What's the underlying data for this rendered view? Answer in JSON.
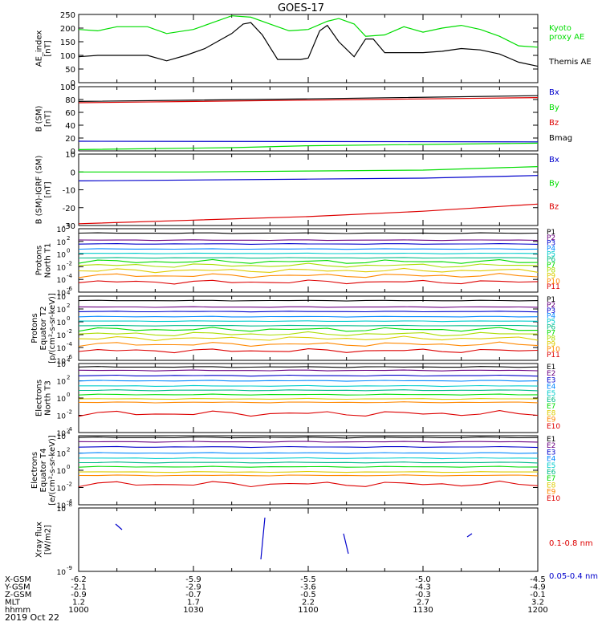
{
  "title": "GOES-17",
  "date_label": "2019 Oct 22",
  "chart_data": [
    {
      "panel": "ae",
      "type": "line",
      "ylabel": [
        "AE_index",
        "[nT]"
      ],
      "ylim": [
        0,
        250
      ],
      "yticks": [
        0,
        50,
        100,
        150,
        200,
        250
      ],
      "x_hhmm": [
        1000,
        1200
      ],
      "series": [
        {
          "name": "Kyoto proxy AE",
          "label_lines": [
            "Kyoto",
            "proxy AE"
          ],
          "color": "#00dd00",
          "x": [
            1000,
            1005,
            1010,
            1018,
            1023,
            1030,
            1035,
            1040,
            1045,
            1050,
            1055,
            1100,
            1105,
            1108,
            1112,
            1115,
            1120,
            1125,
            1130,
            1135,
            1140,
            1145,
            1150,
            1155,
            1200
          ],
          "values": [
            195,
            190,
            205,
            205,
            180,
            195,
            220,
            245,
            240,
            215,
            190,
            195,
            225,
            235,
            215,
            170,
            175,
            205,
            185,
            200,
            210,
            195,
            170,
            135,
            130
          ]
        },
        {
          "name": "Themis AE",
          "label_lines": [
            "Themis AE"
          ],
          "color": "#000000",
          "x": [
            1000,
            1005,
            1010,
            1018,
            1023,
            1028,
            1033,
            1040,
            1043,
            1045,
            1048,
            1050,
            1052,
            1055,
            1058,
            1100,
            1103,
            1105,
            1108,
            1112,
            1115,
            1117,
            1120,
            1125,
            1130,
            1135,
            1140,
            1145,
            1150,
            1155,
            1200
          ],
          "values": [
            95,
            100,
            100,
            100,
            80,
            100,
            125,
            180,
            215,
            220,
            175,
            130,
            85,
            85,
            85,
            90,
            190,
            210,
            150,
            95,
            160,
            160,
            110,
            110,
            110,
            115,
            125,
            120,
            105,
            75,
            60
          ]
        }
      ]
    },
    {
      "panel": "b_sm",
      "type": "line",
      "ylabel": [
        "B (SM)",
        "[nT]"
      ],
      "ylim": [
        0,
        100
      ],
      "yticks": [
        0,
        20,
        40,
        60,
        80,
        100
      ],
      "series": [
        {
          "name": "Bx",
          "color": "#0000cc",
          "x": [
            1000,
            1200
          ],
          "values": [
            15,
            14
          ]
        },
        {
          "name": "By",
          "color": "#00dd00",
          "x": [
            1000,
            1040,
            1100,
            1200
          ],
          "values": [
            2,
            5,
            8,
            12
          ]
        },
        {
          "name": "Bz",
          "color": "#dd0000",
          "x": [
            1000,
            1100,
            1200
          ],
          "values": [
            75,
            79,
            83
          ]
        },
        {
          "name": "Bmag",
          "color": "#000000",
          "x": [
            1000,
            1100,
            1200
          ],
          "values": [
            77,
            81,
            86
          ]
        }
      ]
    },
    {
      "panel": "b_igrf",
      "type": "line",
      "ylabel": [
        "B (SM)-IGRF (SM)",
        "[nT]"
      ],
      "ylim": [
        -30,
        10
      ],
      "yticks": [
        -30,
        -20,
        -10,
        0,
        10
      ],
      "series": [
        {
          "name": "Bx",
          "color": "#0000cc",
          "x": [
            1000,
            1030,
            1100,
            1130,
            1200
          ],
          "values": [
            -5,
            -4.5,
            -4,
            -3.5,
            -2
          ]
        },
        {
          "name": "By",
          "color": "#00dd00",
          "x": [
            1000,
            1030,
            1100,
            1130,
            1200
          ],
          "values": [
            0,
            0,
            0.5,
            1,
            3
          ]
        },
        {
          "name": "Bz",
          "color": "#dd0000",
          "x": [
            1000,
            1030,
            1100,
            1130,
            1200
          ],
          "values": [
            -29,
            -27,
            -25,
            -22,
            -18
          ]
        }
      ]
    },
    {
      "panel": "protons_n",
      "type": "line",
      "log": true,
      "ylabel": [
        "Protons",
        "North T1"
      ],
      "yexp": [
        -6,
        4
      ],
      "yticks_exp": [
        -6,
        -4,
        -2,
        0,
        2,
        4
      ],
      "channels": [
        "P1",
        "P2",
        "P3",
        "P4",
        "P5",
        "P6",
        "P7",
        "P8",
        "P9",
        "P10",
        "P11"
      ],
      "channel_colors": [
        "#000000",
        "#6a0080",
        "#0000cc",
        "#0088ff",
        "#00cccc",
        "#00bb88",
        "#00dd00",
        "#aadd00",
        "#ddcc00",
        "#ff8800",
        "#dd0000"
      ],
      "levels_exp": [
        3.3,
        2.2,
        1.6,
        0.8,
        0.1,
        -0.6,
        -1.2,
        -1.8,
        -2.6,
        -3.4,
        -4.4
      ]
    },
    {
      "panel": "protons_e",
      "type": "line",
      "log": true,
      "ylabel": [
        "Protons",
        "Equator T2",
        "[p/(cm²-s-sr-keV)]"
      ],
      "yexp": [
        -6,
        4
      ],
      "yticks_exp": [
        -6,
        -4,
        -2,
        0,
        2,
        4
      ],
      "channels": [
        "P1",
        "P2",
        "P3",
        "P4",
        "P5",
        "P6",
        "P7",
        "P8",
        "P9",
        "P10",
        "P11"
      ],
      "channel_colors": [
        "#000000",
        "#6a0080",
        "#0000cc",
        "#0088ff",
        "#00cccc",
        "#00bb88",
        "#00dd00",
        "#aadd00",
        "#ddcc00",
        "#ff8800",
        "#dd0000"
      ],
      "levels_exp": [
        3.3,
        2.3,
        1.6,
        0.8,
        0.1,
        -0.6,
        -1.2,
        -1.9,
        -2.6,
        -3.5,
        -4.5
      ]
    },
    {
      "panel": "electrons_n",
      "type": "line",
      "log": true,
      "ylabel": [
        "Electrons",
        "North T3"
      ],
      "yexp": [
        -4,
        4
      ],
      "yticks_exp": [
        -4,
        -2,
        0,
        2,
        4
      ],
      "channels": [
        "E1",
        "E2",
        "E3",
        "E4",
        "E5",
        "E6",
        "E7",
        "E8",
        "E9",
        "E10"
      ],
      "channel_colors": [
        "#000000",
        "#6a0080",
        "#0000cc",
        "#0088ff",
        "#00cccc",
        "#00bb88",
        "#00dd00",
        "#ddcc00",
        "#ff8800",
        "#dd0000"
      ],
      "levels_exp": [
        3.6,
        3.2,
        2.6,
        2.0,
        1.4,
        0.9,
        0.4,
        -0.1,
        -0.5,
        -1.8
      ]
    },
    {
      "panel": "electrons_e",
      "type": "line",
      "log": true,
      "ylabel": [
        "Electrons",
        "Equator T4",
        "[e/(cm²-s-sr-keV)]"
      ],
      "yexp": [
        -4,
        4
      ],
      "yticks_exp": [
        -4,
        -2,
        0,
        2,
        4
      ],
      "channels": [
        "E1",
        "E2",
        "E3",
        "E4",
        "E5",
        "E6",
        "E7",
        "E8",
        "E9",
        "E10"
      ],
      "channel_colors": [
        "#000000",
        "#6a0080",
        "#0000cc",
        "#0088ff",
        "#00cccc",
        "#00bb88",
        "#00dd00",
        "#ddcc00",
        "#ff8800",
        "#dd0000"
      ],
      "levels_exp": [
        3.8,
        3.3,
        2.7,
        2.0,
        1.4,
        0.9,
        0.4,
        -0.2,
        -0.6,
        -1.6
      ]
    },
    {
      "panel": "xray",
      "type": "line",
      "log": true,
      "ylabel": [
        "Xray flux",
        "[W/m2]"
      ],
      "yexp": [
        -9,
        -8
      ],
      "yticks_exp": [
        -9,
        -8
      ],
      "series": [
        {
          "name": "0.1-0.8 nm",
          "color": "#dd0000"
        },
        {
          "name": "0.05-0.4 nm",
          "color": "#0000cc"
        }
      ]
    }
  ],
  "x_axis": {
    "row_labels": [
      "X-GSM",
      "Y-GSM",
      "Z-GSM",
      "MLT",
      "hhmm"
    ],
    "ticks": [
      {
        "hhmm": "1000",
        "values": [
          "-6.2",
          "-2.1",
          "-0.9",
          "1.2"
        ]
      },
      {
        "hhmm": "1030",
        "values": [
          "-5.9",
          "-2.9",
          "-0.7",
          "1.7"
        ]
      },
      {
        "hhmm": "1100",
        "values": [
          "-5.5",
          "-3.6",
          "-0.5",
          "2.2"
        ]
      },
      {
        "hhmm": "1130",
        "values": [
          "-5.0",
          "-4.3",
          "-0.3",
          "2.7"
        ]
      },
      {
        "hhmm": "1200",
        "values": [
          "-4.5",
          "-4.9",
          "-0.1",
          "3.2"
        ]
      }
    ]
  }
}
